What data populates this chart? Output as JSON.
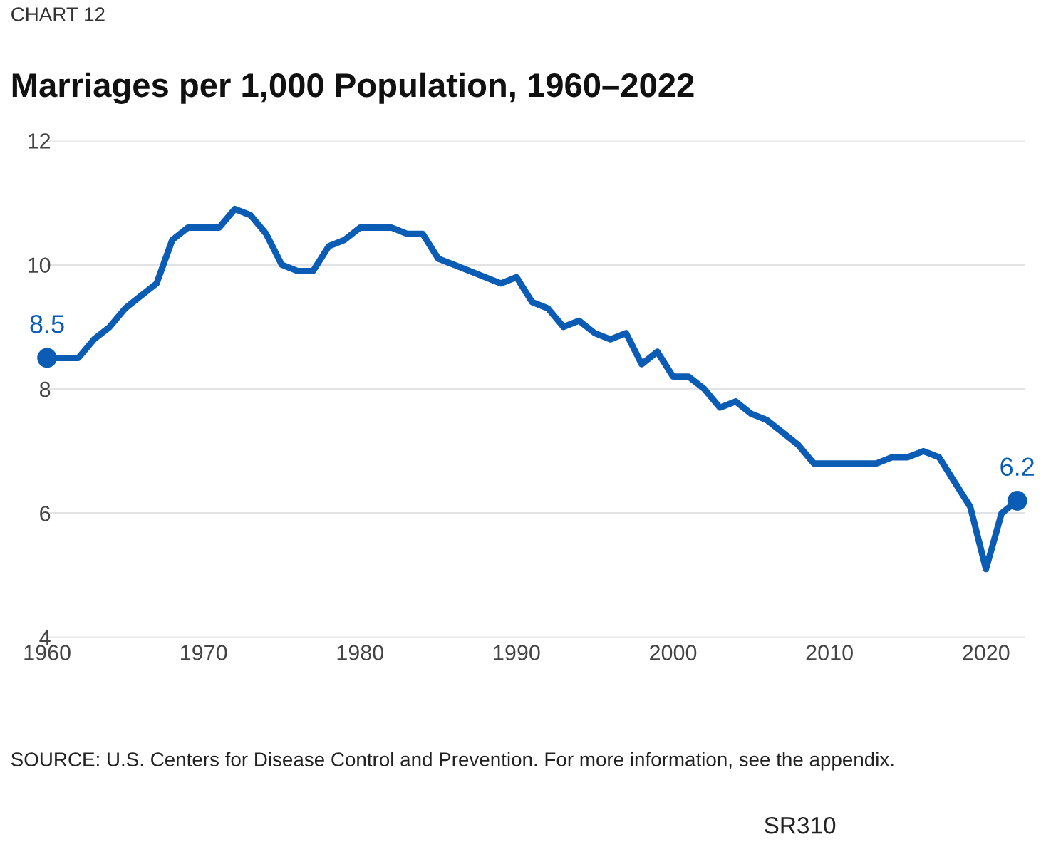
{
  "chart_data": {
    "type": "line",
    "title": "Marriages per 1,000 Population, 1960–2022",
    "annotations": [
      "CHART 12",
      "SOURCE: U.S. Centers for Disease Control and Prevention. For more information, see the appendix.",
      "SR310"
    ],
    "x": [
      1960,
      1961,
      1962,
      1963,
      1964,
      1965,
      1966,
      1967,
      1968,
      1969,
      1970,
      1971,
      1972,
      1973,
      1974,
      1975,
      1976,
      1977,
      1978,
      1979,
      1980,
      1981,
      1982,
      1983,
      1984,
      1985,
      1986,
      1987,
      1988,
      1989,
      1990,
      1991,
      1992,
      1993,
      1994,
      1995,
      1996,
      1997,
      1998,
      1999,
      2000,
      2001,
      2002,
      2003,
      2004,
      2005,
      2006,
      2007,
      2008,
      2009,
      2010,
      2011,
      2012,
      2013,
      2014,
      2015,
      2016,
      2017,
      2018,
      2019,
      2020,
      2021,
      2022
    ],
    "series": [
      {
        "color": "#0a5cb4",
        "values": [
          8.5,
          8.5,
          8.5,
          8.8,
          9.0,
          9.3,
          9.5,
          9.7,
          10.4,
          10.6,
          10.6,
          10.6,
          10.9,
          10.8,
          10.5,
          10.0,
          9.9,
          9.9,
          10.3,
          10.4,
          10.6,
          10.6,
          10.6,
          10.5,
          10.5,
          10.1,
          10.0,
          9.9,
          9.8,
          9.7,
          9.8,
          9.4,
          9.3,
          9.0,
          9.1,
          8.9,
          8.8,
          8.9,
          8.4,
          8.6,
          8.2,
          8.2,
          8.0,
          7.7,
          7.8,
          7.6,
          7.5,
          7.3,
          7.1,
          6.8,
          6.8,
          6.8,
          6.8,
          6.8,
          6.9,
          6.9,
          7.0,
          6.9,
          6.5,
          6.1,
          5.1,
          6.0,
          6.2
        ],
        "value_labels": [
          "8.5",
          null,
          null,
          null,
          null,
          null,
          null,
          null,
          null,
          null,
          null,
          null,
          null,
          null,
          null,
          null,
          null,
          null,
          null,
          null,
          null,
          null,
          null,
          null,
          null,
          null,
          null,
          null,
          null,
          null,
          null,
          null,
          null,
          null,
          null,
          null,
          null,
          null,
          null,
          null,
          null,
          null,
          null,
          null,
          null,
          null,
          null,
          null,
          null,
          null,
          null,
          null,
          null,
          null,
          null,
          null,
          null,
          null,
          null,
          null,
          null,
          null,
          "6.2"
        ]
      }
    ],
    "xlim": [
      1960,
      2022.5
    ],
    "xticks": [
      1960,
      1970,
      1980,
      1990,
      2000,
      2010,
      2020
    ],
    "ylim": [
      4,
      12
    ],
    "yticks": [
      4,
      6,
      8,
      10,
      12
    ],
    "grid": "y"
  }
}
